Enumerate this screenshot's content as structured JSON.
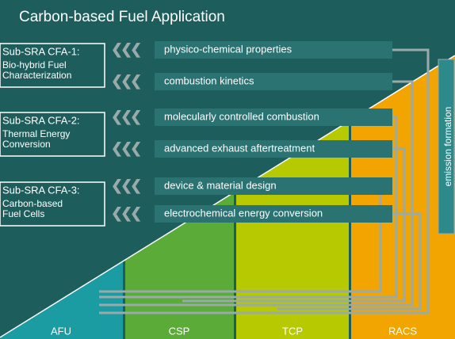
{
  "header": {
    "title": "Carbon-based Fuel Application"
  },
  "sub_sras": [
    {
      "title": "Sub-SRA CFA-1:",
      "lines": [
        "Bio-hybrid Fuel",
        "Characterization"
      ]
    },
    {
      "title": "Sub-SRA CFA-2:",
      "lines": [
        "Thermal Energy",
        "Conversion"
      ]
    },
    {
      "title": "Sub-SRA CFA-3:",
      "lines": [
        "Carbon-based",
        "Fuel Cells"
      ]
    }
  ],
  "topics": [
    "physico-chemical properties",
    "combustion kinetics",
    "molecularly controlled combustion",
    "advanced exhaust aftertreatment",
    "device & material design",
    "electrochemical energy conversion"
  ],
  "side_label": "emission formation",
  "columns": [
    "AFU",
    "CSP",
    "TCP",
    "RACS"
  ]
}
